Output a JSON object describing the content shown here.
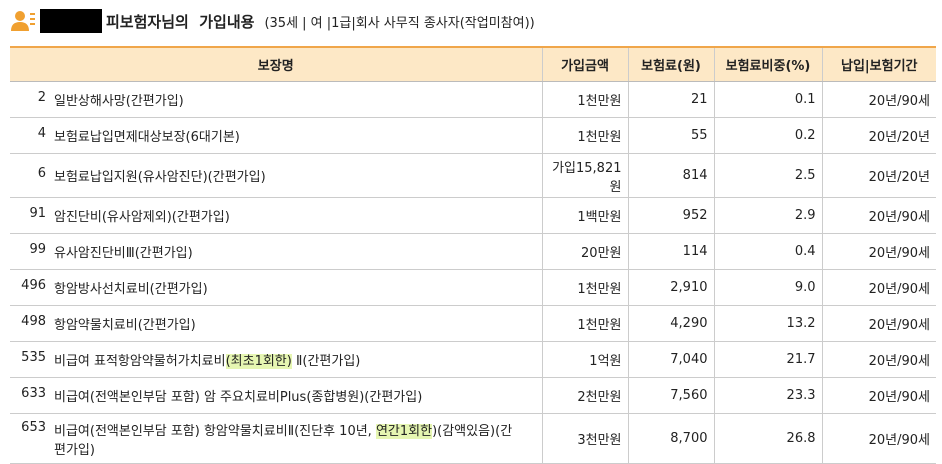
{
  "header": {
    "title": "피보험자님의  가입내용",
    "subtitle": "(35세 | 여 |1급|회사 사무직 종사자(작업미참여))"
  },
  "table": {
    "columns": [
      "보장명",
      "가입금액",
      "보험료(원)",
      "보험료비중(%)",
      "납입|보험기간"
    ],
    "rows": [
      {
        "no": "2",
        "name": [
          {
            "text": "일반상해사망(간편가입)"
          }
        ],
        "amount": "1천만원",
        "premium": "21",
        "ratio": "0.1",
        "period": "20년/90세"
      },
      {
        "no": "4",
        "name": [
          {
            "text": "보험료납입면제대상보장(6대기본)"
          }
        ],
        "amount": "1천만원",
        "premium": "55",
        "ratio": "0.2",
        "period": "20년/20년"
      },
      {
        "no": "6",
        "name": [
          {
            "text": "보험료납입지원(유사암진단)(간편가입)"
          }
        ],
        "amount": "가입15,821원",
        "premium": "814",
        "ratio": "2.5",
        "period": "20년/20년"
      },
      {
        "no": "91",
        "name": [
          {
            "text": "암진단비(유사암제외)(간편가입)"
          }
        ],
        "amount": "1백만원",
        "premium": "952",
        "ratio": "2.9",
        "period": "20년/90세"
      },
      {
        "no": "99",
        "name": [
          {
            "text": "유사암진단비Ⅲ(간편가입)"
          }
        ],
        "amount": "20만원",
        "premium": "114",
        "ratio": "0.4",
        "period": "20년/90세"
      },
      {
        "no": "496",
        "name": [
          {
            "text": "항암방사선치료비(간편가입)"
          }
        ],
        "amount": "1천만원",
        "premium": "2,910",
        "ratio": "9.0",
        "period": "20년/90세"
      },
      {
        "no": "498",
        "name": [
          {
            "text": "항암약물치료비(간편가입)"
          }
        ],
        "amount": "1천만원",
        "premium": "4,290",
        "ratio": "13.2",
        "period": "20년/90세"
      },
      {
        "no": "535",
        "name": [
          {
            "text": "비급여 표적항암약물허가치료비"
          },
          {
            "text": "(최초1회한)",
            "highlight": true
          },
          {
            "text": " Ⅱ(간편가입)"
          }
        ],
        "amount": "1억원",
        "premium": "7,040",
        "ratio": "21.7",
        "period": "20년/90세"
      },
      {
        "no": "633",
        "name": [
          {
            "text": "비급여(전액본인부담 포함) 암 주요치료비Plus(종합병원)(간편가입)"
          }
        ],
        "amount": "2천만원",
        "premium": "7,560",
        "ratio": "23.3",
        "period": "20년/90세"
      },
      {
        "no": "653",
        "name": [
          {
            "text": "비급여(전액본인부담 포함) 항암약물치료비Ⅱ(진단후 10년, "
          },
          {
            "text": "연간1회한",
            "highlight": true
          },
          {
            "text": ")(감액있음)(간편가입)"
          }
        ],
        "amount": "3천만원",
        "premium": "8,700",
        "ratio": "26.8",
        "period": "20년/90세"
      }
    ]
  }
}
